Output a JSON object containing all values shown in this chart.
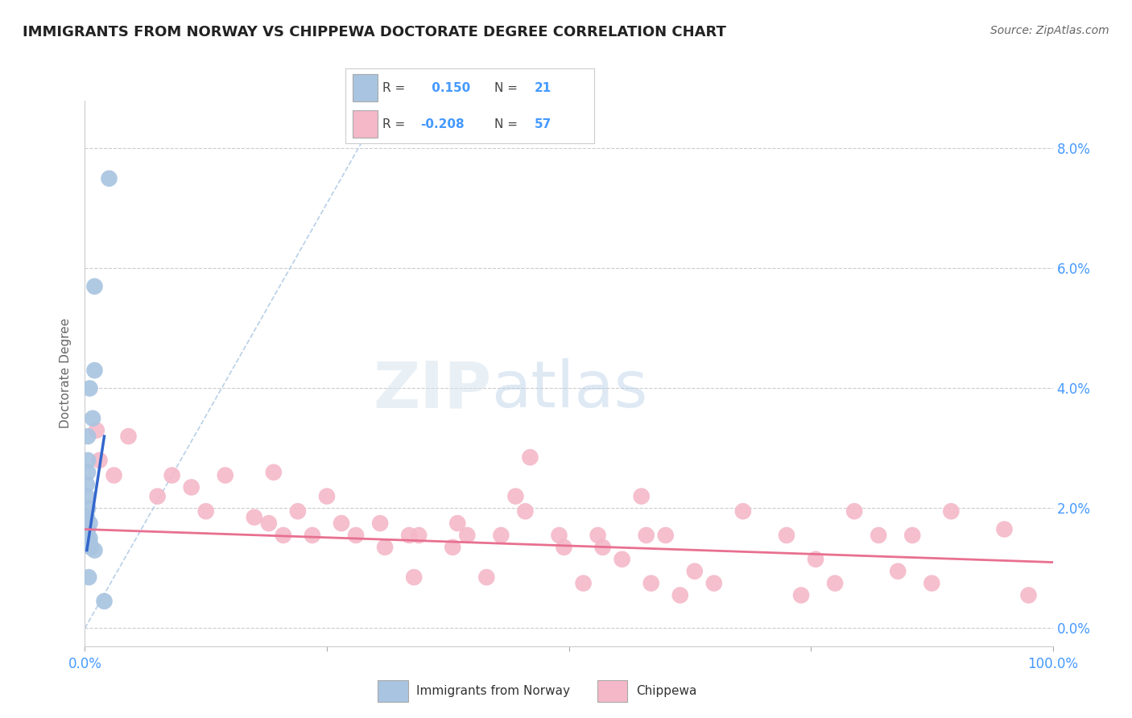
{
  "title": "IMMIGRANTS FROM NORWAY VS CHIPPEWA DOCTORATE DEGREE CORRELATION CHART",
  "source": "Source: ZipAtlas.com",
  "ylabel": "Doctorate Degree",
  "background_color": "#ffffff",
  "grid_color": "#cccccc",
  "norway_color": "#a8c4e0",
  "chippewa_color": "#f4b8c8",
  "norway_line_color": "#3366cc",
  "chippewa_line_color": "#e87090",
  "dashed_line_color": "#b8d0e8",
  "axis_label_color": "#4499ff",
  "ytick_labels": [
    "0.0%",
    "2.0%",
    "4.0%",
    "6.0%",
    "8.0%"
  ],
  "ytick_values": [
    0.0,
    2.0,
    4.0,
    6.0,
    8.0
  ],
  "xlim": [
    0.0,
    100.0
  ],
  "ylim": [
    -0.3,
    8.8
  ],
  "norway_R": 0.15,
  "norway_N": 21,
  "chippewa_R": -0.208,
  "chippewa_N": 57,
  "legend_norway_label": "Immigrants from Norway",
  "legend_chippewa_label": "Chippewa",
  "norway_points": [
    [
      2.5,
      7.5
    ],
    [
      1.0,
      5.7
    ],
    [
      1.0,
      4.3
    ],
    [
      0.5,
      4.0
    ],
    [
      0.8,
      3.5
    ],
    [
      0.3,
      3.2
    ],
    [
      0.3,
      2.8
    ],
    [
      0.3,
      2.6
    ],
    [
      0.2,
      2.4
    ],
    [
      0.2,
      2.2
    ],
    [
      0.3,
      2.0
    ],
    [
      0.2,
      1.85
    ],
    [
      0.5,
      1.75
    ],
    [
      0.3,
      1.65
    ],
    [
      0.25,
      1.55
    ],
    [
      0.5,
      1.5
    ],
    [
      0.5,
      1.42
    ],
    [
      0.6,
      1.35
    ],
    [
      1.0,
      1.3
    ],
    [
      0.4,
      0.85
    ],
    [
      2.0,
      0.45
    ]
  ],
  "chippewa_points": [
    [
      1.2,
      3.3
    ],
    [
      1.5,
      2.8
    ],
    [
      3.0,
      2.55
    ],
    [
      4.5,
      3.2
    ],
    [
      7.5,
      2.2
    ],
    [
      9.0,
      2.55
    ],
    [
      11.0,
      2.35
    ],
    [
      12.5,
      1.95
    ],
    [
      14.5,
      2.55
    ],
    [
      17.5,
      1.85
    ],
    [
      19.0,
      1.75
    ],
    [
      19.5,
      2.6
    ],
    [
      20.5,
      1.55
    ],
    [
      22.0,
      1.95
    ],
    [
      23.5,
      1.55
    ],
    [
      25.0,
      2.2
    ],
    [
      26.5,
      1.75
    ],
    [
      28.0,
      1.55
    ],
    [
      30.5,
      1.75
    ],
    [
      31.0,
      1.35
    ],
    [
      33.5,
      1.55
    ],
    [
      34.0,
      0.85
    ],
    [
      34.5,
      1.55
    ],
    [
      38.0,
      1.35
    ],
    [
      38.5,
      1.75
    ],
    [
      39.5,
      1.55
    ],
    [
      41.5,
      0.85
    ],
    [
      43.0,
      1.55
    ],
    [
      44.5,
      2.2
    ],
    [
      45.5,
      1.95
    ],
    [
      46.0,
      2.85
    ],
    [
      49.0,
      1.55
    ],
    [
      49.5,
      1.35
    ],
    [
      51.5,
      0.75
    ],
    [
      53.0,
      1.55
    ],
    [
      53.5,
      1.35
    ],
    [
      55.5,
      1.15
    ],
    [
      57.5,
      2.2
    ],
    [
      58.0,
      1.55
    ],
    [
      58.5,
      0.75
    ],
    [
      60.0,
      1.55
    ],
    [
      61.5,
      0.55
    ],
    [
      63.0,
      0.95
    ],
    [
      65.0,
      0.75
    ],
    [
      68.0,
      1.95
    ],
    [
      72.5,
      1.55
    ],
    [
      74.0,
      0.55
    ],
    [
      75.5,
      1.15
    ],
    [
      77.5,
      0.75
    ],
    [
      79.5,
      1.95
    ],
    [
      82.0,
      1.55
    ],
    [
      84.0,
      0.95
    ],
    [
      85.5,
      1.55
    ],
    [
      87.5,
      0.75
    ],
    [
      89.5,
      1.95
    ],
    [
      95.0,
      1.65
    ],
    [
      97.5,
      0.55
    ]
  ],
  "norway_line": [
    [
      0.2,
      1.3
    ],
    [
      2.0,
      3.2
    ]
  ],
  "chippewa_line": [
    [
      0.0,
      1.65
    ],
    [
      100.0,
      1.1
    ]
  ],
  "diag_line": [
    [
      0.0,
      0.0
    ],
    [
      30.0,
      8.5
    ]
  ]
}
